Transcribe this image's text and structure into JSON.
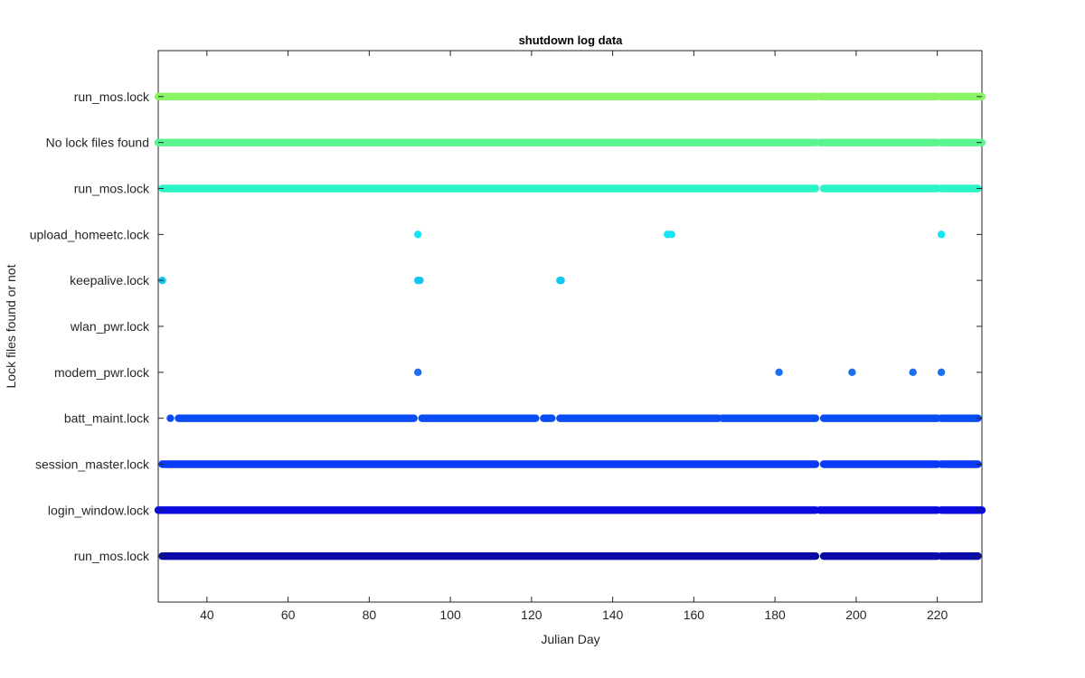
{
  "chart_data": {
    "type": "scatter",
    "title": "shutdown log data",
    "xlabel": "Julian Day",
    "ylabel": "Lock files found or not",
    "xlim": [
      28,
      231
    ],
    "ylim": [
      0,
      12
    ],
    "xticks": [
      40,
      60,
      80,
      100,
      120,
      140,
      160,
      180,
      200,
      220
    ],
    "xtick_labels": [
      "40",
      "60",
      "80",
      "100",
      "120",
      "140",
      "160",
      "180",
      "200",
      "220"
    ],
    "yticks": [
      1,
      2,
      3,
      4,
      5,
      6,
      7,
      8,
      9,
      10,
      11
    ],
    "ytick_labels": [
      "run_mos.lock",
      "login_window.lock",
      "session_master.lock",
      "batt_maint.lock",
      "modem_pwr.lock",
      "wlan_pwr.lock",
      "keepalive.lock",
      "upload_homeetc.lock",
      "run_mos.lock",
      "No lock files found",
      "run_mos.lock"
    ],
    "grid": false,
    "series": [
      {
        "y": 1,
        "color": "#0a0aa8",
        "segments": [
          [
            29,
            190
          ],
          [
            192,
            220
          ],
          [
            221,
            230
          ]
        ]
      },
      {
        "y": 2,
        "color": "#0a0ae0",
        "segments": [
          [
            28,
            190
          ],
          [
            191,
            220
          ],
          [
            221,
            231
          ]
        ]
      },
      {
        "y": 3,
        "color": "#0a3af5",
        "segments": [
          [
            29,
            190
          ],
          [
            192,
            220
          ],
          [
            221,
            230
          ]
        ]
      },
      {
        "y": 4,
        "color": "#0a4df5",
        "points": [
          31
        ],
        "segments": [
          [
            33,
            91
          ],
          [
            93,
            121
          ],
          [
            123,
            125
          ],
          [
            127,
            166
          ],
          [
            167,
            190
          ],
          [
            192,
            220
          ],
          [
            221,
            230
          ]
        ]
      },
      {
        "y": 5,
        "color": "#1e6ef0",
        "points": [
          92,
          181,
          199,
          214,
          221
        ]
      },
      {
        "y": 7,
        "color": "#13c6f0",
        "points": [
          29,
          92,
          92.5,
          127,
          127.3
        ]
      },
      {
        "y": 8,
        "color": "#13e6f5",
        "points": [
          92,
          153.5,
          154.5,
          221
        ]
      },
      {
        "y": 9,
        "color": "#2af5c6",
        "segments": [
          [
            29,
            190
          ],
          [
            192,
            220
          ],
          [
            221,
            230
          ]
        ]
      },
      {
        "y": 10,
        "color": "#5af58e",
        "segments": [
          [
            28,
            190
          ],
          [
            191,
            220
          ],
          [
            221,
            231
          ]
        ]
      },
      {
        "y": 11,
        "color": "#8af562",
        "segments": [
          [
            28,
            190
          ],
          [
            191,
            220
          ],
          [
            221,
            231
          ]
        ]
      }
    ]
  }
}
